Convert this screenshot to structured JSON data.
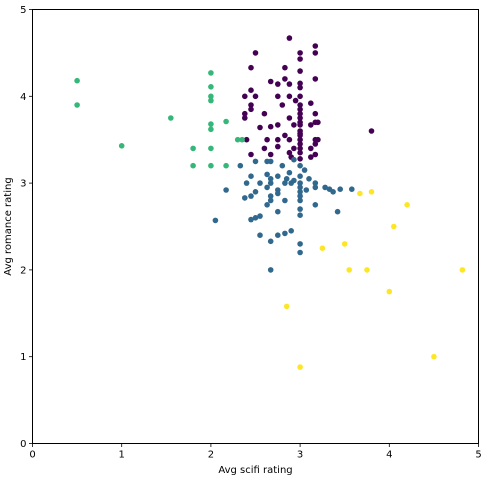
{
  "chart_data": {
    "type": "scatter",
    "title": "",
    "xlabel": "Avg scifi rating",
    "ylabel": "Avg romance rating",
    "xlim": [
      0,
      5
    ],
    "ylim": [
      0,
      5
    ],
    "xticks": [
      "0",
      "1",
      "2",
      "3",
      "4",
      "5"
    ],
    "yticks": [
      "0",
      "1",
      "2",
      "3",
      "4",
      "5"
    ],
    "grid": false,
    "legend": "none",
    "series": [
      {
        "color": "#440154",
        "points": [
          [
            2.5,
            4.5
          ],
          [
            2.88,
            4.67
          ],
          [
            3.17,
            4.58
          ],
          [
            3.17,
            4.5
          ],
          [
            3.0,
            4.5
          ],
          [
            3.0,
            4.43
          ],
          [
            2.83,
            4.33
          ],
          [
            2.45,
            4.33
          ],
          [
            3.0,
            4.29
          ],
          [
            2.83,
            4.2
          ],
          [
            3.17,
            4.2
          ],
          [
            2.67,
            4.17
          ],
          [
            2.75,
            4.14
          ],
          [
            2.88,
            4.14
          ],
          [
            3.0,
            4.15
          ],
          [
            3.0,
            4.1
          ],
          [
            2.45,
            4.07
          ],
          [
            3.0,
            4.0
          ],
          [
            2.38,
            4.0
          ],
          [
            2.88,
            4.0
          ],
          [
            2.75,
            4.0
          ],
          [
            2.5,
            4.0
          ],
          [
            2.95,
            3.95
          ],
          [
            3.12,
            3.92
          ],
          [
            3.0,
            3.9
          ],
          [
            2.45,
            3.9
          ],
          [
            2.8,
            3.9
          ],
          [
            3.0,
            3.85
          ],
          [
            2.45,
            3.85
          ],
          [
            3.0,
            3.8
          ],
          [
            2.38,
            3.8
          ],
          [
            3.17,
            3.8
          ],
          [
            2.6,
            3.8
          ],
          [
            2.88,
            3.75
          ],
          [
            3.0,
            3.75
          ],
          [
            2.38,
            3.75
          ],
          [
            3.0,
            3.7
          ],
          [
            3.17,
            3.7
          ],
          [
            3.0,
            3.67
          ],
          [
            2.93,
            3.67
          ],
          [
            3.12,
            3.67
          ],
          [
            3.2,
            3.7
          ],
          [
            2.75,
            3.67
          ],
          [
            2.67,
            3.65
          ],
          [
            2.55,
            3.64
          ],
          [
            3.0,
            3.6
          ],
          [
            3.0,
            3.57
          ],
          [
            2.83,
            3.55
          ],
          [
            2.75,
            3.5
          ],
          [
            2.88,
            3.5
          ],
          [
            3.0,
            3.5
          ],
          [
            2.63,
            3.5
          ],
          [
            3.17,
            3.5
          ],
          [
            2.4,
            3.5
          ],
          [
            3.0,
            3.45
          ],
          [
            3.17,
            3.45
          ],
          [
            2.75,
            3.42
          ],
          [
            3.0,
            3.4
          ],
          [
            2.93,
            3.4
          ],
          [
            2.6,
            3.4
          ],
          [
            3.12,
            3.4
          ],
          [
            3.0,
            3.35
          ],
          [
            2.88,
            3.35
          ],
          [
            2.67,
            3.33
          ],
          [
            3.17,
            3.33
          ],
          [
            2.45,
            3.33
          ],
          [
            2.9,
            3.3
          ],
          [
            3.12,
            3.3
          ],
          [
            3.0,
            3.28
          ],
          [
            3.8,
            3.6
          ],
          [
            3.2,
            3.5
          ],
          [
            3.0,
            3.55
          ]
        ]
      },
      {
        "color": "#31688e",
        "points": [
          [
            2.63,
            3.25
          ],
          [
            2.93,
            3.27
          ],
          [
            2.5,
            3.25
          ],
          [
            2.33,
            3.2
          ],
          [
            2.67,
            3.25
          ],
          [
            2.8,
            3.2
          ],
          [
            3.0,
            3.2
          ],
          [
            3.05,
            3.15
          ],
          [
            2.63,
            3.1
          ],
          [
            2.75,
            3.08
          ],
          [
            2.88,
            3.12
          ],
          [
            3.0,
            3.08
          ],
          [
            2.67,
            3.05
          ],
          [
            2.45,
            3.08
          ],
          [
            2.55,
            3.0
          ],
          [
            2.67,
            3.0
          ],
          [
            2.83,
            3.0
          ],
          [
            3.0,
            3.0
          ],
          [
            3.17,
            3.0
          ],
          [
            3.1,
            3.05
          ],
          [
            2.4,
            3.0
          ],
          [
            2.9,
            3.0
          ],
          [
            2.63,
            2.95
          ],
          [
            2.75,
            2.92
          ],
          [
            2.5,
            2.9
          ],
          [
            2.75,
            2.88
          ],
          [
            3.0,
            2.9
          ],
          [
            3.07,
            2.92
          ],
          [
            3.17,
            2.95
          ],
          [
            3.33,
            2.93
          ],
          [
            3.45,
            2.93
          ],
          [
            3.58,
            2.93
          ],
          [
            3.37,
            2.9
          ],
          [
            3.0,
            2.85
          ],
          [
            2.67,
            2.85
          ],
          [
            2.45,
            2.85
          ],
          [
            2.38,
            2.83
          ],
          [
            2.17,
            2.92
          ],
          [
            2.67,
            2.8
          ],
          [
            2.83,
            2.8
          ],
          [
            3.0,
            2.8
          ],
          [
            2.63,
            2.75
          ],
          [
            3.17,
            2.75
          ],
          [
            3.0,
            2.7
          ],
          [
            2.75,
            2.67
          ],
          [
            3.42,
            2.67
          ],
          [
            3.0,
            2.63
          ],
          [
            2.55,
            2.62
          ],
          [
            2.5,
            2.6
          ],
          [
            2.45,
            2.58
          ],
          [
            2.05,
            2.57
          ],
          [
            2.83,
            2.42
          ],
          [
            2.9,
            2.45
          ],
          [
            2.55,
            2.4
          ],
          [
            2.75,
            2.4
          ],
          [
            2.67,
            2.33
          ],
          [
            3.0,
            2.3
          ],
          [
            3.0,
            2.2
          ],
          [
            2.67,
            2.0
          ],
          [
            2.93,
            3.03
          ],
          [
            3.28,
            2.95
          ],
          [
            2.85,
            3.05
          ],
          [
            3.0,
            2.95
          ]
        ]
      },
      {
        "color": "#35b779",
        "points": [
          [
            0.5,
            4.18
          ],
          [
            0.5,
            3.9
          ],
          [
            1.0,
            3.43
          ],
          [
            1.55,
            3.75
          ],
          [
            1.8,
            3.4
          ],
          [
            1.8,
            3.2
          ],
          [
            2.0,
            4.27
          ],
          [
            2.0,
            4.11
          ],
          [
            2.0,
            4.0
          ],
          [
            2.0,
            3.95
          ],
          [
            2.0,
            3.68
          ],
          [
            2.0,
            3.62
          ],
          [
            2.0,
            3.4
          ],
          [
            2.0,
            3.2
          ],
          [
            2.17,
            3.71
          ],
          [
            2.17,
            3.2
          ],
          [
            2.3,
            3.5
          ],
          [
            2.35,
            3.5
          ]
        ]
      },
      {
        "color": "#fde725",
        "points": [
          [
            3.67,
            2.88
          ],
          [
            3.8,
            2.9
          ],
          [
            4.2,
            2.75
          ],
          [
            4.05,
            2.5
          ],
          [
            3.25,
            2.25
          ],
          [
            3.5,
            2.3
          ],
          [
            3.55,
            2.0
          ],
          [
            3.75,
            2.0
          ],
          [
            4.82,
            2.0
          ],
          [
            4.0,
            1.75
          ],
          [
            2.85,
            1.58
          ],
          [
            4.5,
            1.0
          ],
          [
            3.0,
            0.88
          ]
        ]
      }
    ]
  }
}
